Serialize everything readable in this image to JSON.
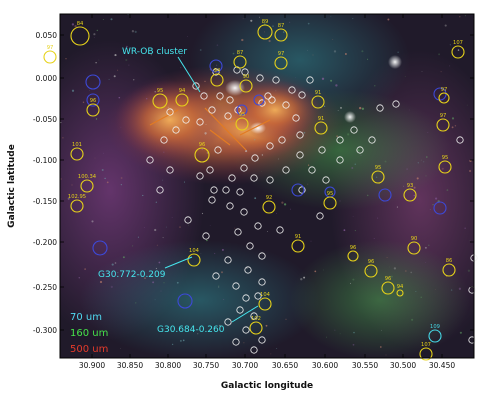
{
  "figure": {
    "xlabel": "Galactic longitude",
    "ylabel": "Galactic latitude",
    "xticks": [
      "30.900",
      "30.850",
      "30.800",
      "30.750",
      "30.700",
      "30.650",
      "30.600",
      "30.550",
      "30.500",
      "30.450"
    ],
    "yticks": [
      "0.050",
      "0.000",
      "-0.050",
      "-0.100",
      "-0.150",
      "-0.200",
      "-0.250",
      "-0.300"
    ],
    "xlim": [
      30.93,
      30.445
    ],
    "ylim": [
      -0.345,
      0.075
    ]
  },
  "annotations": {
    "wr_ob": "WR-OB cluster",
    "g30772": "G30.772-0.209",
    "g30684": "G30.684-0.260"
  },
  "legend": [
    {
      "label": "70 um",
      "color": "#4fd8f0"
    },
    {
      "label": "160 um",
      "color": "#46e24a"
    },
    {
      "label": "500 um",
      "color": "#e43a2a"
    }
  ],
  "sources": [
    {
      "id": "84",
      "color": "yellow"
    },
    {
      "id": "97",
      "color": "yellow"
    },
    {
      "id": "89",
      "color": "yellow"
    },
    {
      "id": "87",
      "color": "yellow"
    },
    {
      "id": "87",
      "color": "yellow"
    },
    {
      "id": "97",
      "color": "yellow"
    },
    {
      "id": "107",
      "color": "yellow"
    },
    {
      "id": "94",
      "color": "yellow"
    },
    {
      "id": "96",
      "color": "yellow"
    },
    {
      "id": "95",
      "color": "yellow"
    },
    {
      "id": "94",
      "color": "yellow"
    },
    {
      "id": "90",
      "color": "yellow"
    },
    {
      "id": "91",
      "color": "yellow"
    },
    {
      "id": "91",
      "color": "yellow"
    },
    {
      "id": "97",
      "color": "yellow"
    },
    {
      "id": "97",
      "color": "yellow"
    },
    {
      "id": "96",
      "color": "yellow"
    },
    {
      "id": "95",
      "color": "yellow"
    },
    {
      "id": "101",
      "color": "yellow"
    },
    {
      "id": "100.34",
      "color": "yellow"
    },
    {
      "id": "102.95",
      "color": "yellow"
    },
    {
      "id": "92",
      "color": "yellow"
    },
    {
      "id": "95",
      "color": "yellow"
    },
    {
      "id": "95",
      "color": "yellow"
    },
    {
      "id": "93",
      "color": "yellow"
    },
    {
      "id": "95",
      "color": "yellow"
    },
    {
      "id": "104",
      "color": "yellow"
    },
    {
      "id": "91",
      "color": "yellow"
    },
    {
      "id": "96",
      "color": "yellow"
    },
    {
      "id": "90",
      "color": "yellow"
    },
    {
      "id": "96",
      "color": "yellow"
    },
    {
      "id": "96",
      "color": "yellow"
    },
    {
      "id": "86",
      "color": "yellow"
    },
    {
      "id": "94",
      "color": "yellow"
    },
    {
      "id": "104",
      "color": "yellow"
    },
    {
      "id": "102",
      "color": "yellow"
    },
    {
      "id": "107",
      "color": "yellow"
    },
    {
      "id": "109",
      "color": "cyan"
    }
  ],
  "colors": {
    "yellow": "#e6d21a",
    "white": "#f2f2f2",
    "blue": "#3d49d8",
    "cyan": "#45d6e4",
    "orange": "#e27b22",
    "annot": "#46e6ee"
  }
}
